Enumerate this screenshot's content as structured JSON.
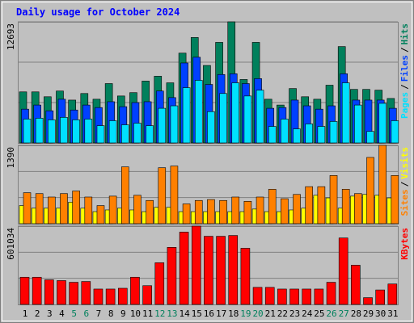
{
  "title": "Daily usage for October 2024",
  "legend_separator": "/",
  "chart_data": [
    {
      "type": "bar",
      "ylim": [
        0,
        12693
      ],
      "yticks": [
        12693
      ],
      "grid_divisions": 3,
      "series": [
        {
          "name": "Pages",
          "color": "#00e0ff",
          "values": [
            2500,
            2590,
            2420,
            2680,
            2420,
            2500,
            1810,
            2330,
            1900,
            2070,
            1810,
            3630,
            3890,
            5790,
            6560,
            3280,
            5180,
            6300,
            4920,
            5530,
            1730,
            2500,
            1470,
            1990,
            1730,
            2250,
            6300,
            3970,
            1210,
            4150,
            2330
          ]
        },
        {
          "name": "Files",
          "color": "#0040ff",
          "values": [
            3540,
            3970,
            3370,
            4580,
            3450,
            3970,
            3710,
            4320,
            3800,
            4230,
            4320,
            5440,
            4750,
            8380,
            8980,
            6130,
            7170,
            7250,
            6220,
            6740,
            3630,
            3710,
            4490,
            3890,
            3540,
            3890,
            7250,
            4490,
            4490,
            4490,
            3630
          ]
        },
        {
          "name": "Hits",
          "color": "#00805c",
          "values": [
            5350,
            5350,
            4840,
            5440,
            4490,
            5180,
            4580,
            6220,
            4920,
            5270,
            6480,
            6990,
            6300,
            9410,
            11050,
            8120,
            10540,
            12693,
            6650,
            10540,
            4580,
            3970,
            5700,
            4840,
            4580,
            6050,
            10100,
            5610,
            5610,
            5530,
            4660
          ]
        }
      ]
    },
    {
      "type": "bar",
      "ylim": [
        0,
        1390
      ],
      "yticks": [
        1390
      ],
      "grid_divisions": 3,
      "series": [
        {
          "name": "Sites",
          "color": "#ff8000",
          "values": [
            550,
            534,
            473,
            534,
            580,
            473,
            321,
            489,
            1008,
            504,
            412,
            993,
            1023,
            351,
            412,
            428,
            412,
            473,
            397,
            473,
            611,
            443,
            519,
            657,
            657,
            855,
            611,
            534,
            1176,
            1390,
            855
          ]
        },
        {
          "name": "Visits",
          "color": "#ffff00",
          "values": [
            321,
            275,
            275,
            275,
            382,
            275,
            214,
            244,
            275,
            244,
            214,
            290,
            290,
            214,
            214,
            214,
            214,
            214,
            214,
            260,
            214,
            214,
            244,
            275,
            504,
            458,
            275,
            489,
            519,
            504,
            458
          ]
        }
      ]
    },
    {
      "type": "bar",
      "ylim": [
        0,
        601034
      ],
      "yticks": [
        601034
      ],
      "grid_divisions": 3,
      "categories": [
        "1",
        "2",
        "3",
        "4",
        "5",
        "6",
        "7",
        "8",
        "9",
        "10",
        "11",
        "12",
        "13",
        "14",
        "15",
        "16",
        "17",
        "18",
        "19",
        "20",
        "21",
        "22",
        "23",
        "24",
        "25",
        "26",
        "27",
        "28",
        "29",
        "30",
        "31"
      ],
      "category_colors": [
        "#000000",
        "#000000",
        "#000000",
        "#000000",
        "#00805c",
        "#00805c",
        "#000000",
        "#000000",
        "#000000",
        "#000000",
        "#000000",
        "#00805c",
        "#00805c",
        "#000000",
        "#000000",
        "#000000",
        "#000000",
        "#000000",
        "#00805c",
        "#00805c",
        "#000000",
        "#000000",
        "#000000",
        "#000000",
        "#000000",
        "#00805c",
        "#00805c",
        "#000000",
        "#000000",
        "#000000",
        "#000000"
      ],
      "series": [
        {
          "name": "KBytes",
          "color": "#ff0000",
          "values": [
            209000,
            209000,
            189000,
            183000,
            170000,
            176000,
            118000,
            118000,
            124000,
            209000,
            144000,
            320000,
            438000,
            555000,
            601034,
            523000,
            523000,
            529000,
            431000,
            131000,
            131000,
            118000,
            118000,
            118000,
            118000,
            170000,
            510000,
            301000,
            52000,
            111000,
            157000
          ]
        }
      ]
    }
  ]
}
